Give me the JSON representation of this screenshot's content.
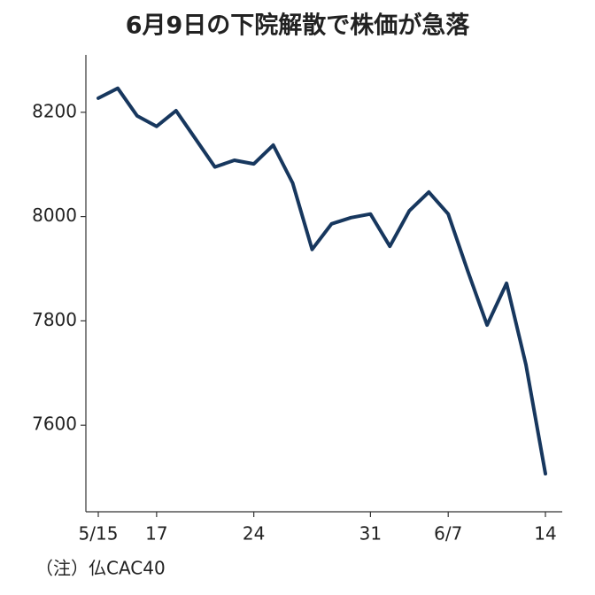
{
  "chart_data": {
    "type": "line",
    "title": "6月9日の下院解散で株価が急落",
    "note": "（注）仏CAC40",
    "categories": [
      "5/15",
      null,
      null,
      "17",
      null,
      null,
      null,
      null,
      "24",
      null,
      null,
      null,
      null,
      null,
      "31",
      null,
      null,
      null,
      "6/7",
      null,
      null,
      null,
      null,
      "14"
    ],
    "series": [
      {
        "name": "CAC40",
        "color": "#17375e",
        "values": [
          8227,
          8246,
          8193,
          8173,
          8203,
          8149,
          8095,
          8108,
          8101,
          8137,
          8064,
          7937,
          7986,
          7998,
          8005,
          7943,
          8011,
          8047,
          8005,
          7896,
          7792,
          7872,
          7716,
          7507
        ]
      }
    ],
    "ylim": [
      7434,
      8310
    ],
    "yticks": [
      7600,
      7800,
      8000,
      8200
    ]
  }
}
